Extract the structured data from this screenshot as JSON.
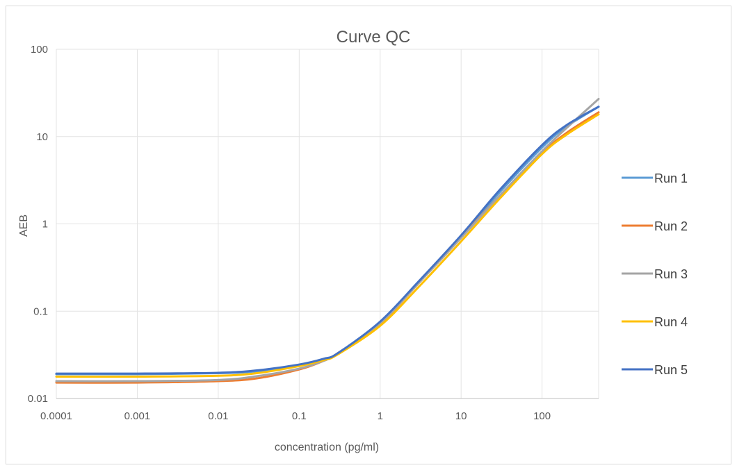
{
  "chart_data": {
    "type": "line",
    "title": "Curve QC",
    "xlabel": "concentration (pg/ml)",
    "ylabel": "AEB",
    "x_scale": "log",
    "y_scale": "log",
    "xlim": [
      0.0001,
      500
    ],
    "ylim": [
      0.01,
      100
    ],
    "x_ticks": [
      0.0001,
      0.001,
      0.01,
      0.1,
      1,
      10,
      100
    ],
    "x_tick_labels": [
      "0.0001",
      "0.001",
      "0.01",
      "0.1",
      "1",
      "10",
      "100"
    ],
    "y_ticks": [
      0.01,
      0.1,
      1,
      10,
      100
    ],
    "y_tick_labels": [
      "0.01",
      "0.1",
      "1",
      "10",
      "100"
    ],
    "grid": true,
    "legend_position": "right",
    "x": [
      0.0001,
      0.001,
      0.01,
      0.03,
      0.1,
      0.2,
      0.3,
      1,
      3,
      10,
      30,
      100,
      200,
      500
    ],
    "series": [
      {
        "name": "Run 1",
        "color": "#5b9bd5",
        "values": [
          0.019,
          0.019,
          0.0195,
          0.0205,
          0.024,
          0.028,
          0.033,
          0.075,
          0.21,
          0.72,
          2.3,
          7.5,
          13,
          22
        ]
      },
      {
        "name": "Run 2",
        "color": "#ed7d31",
        "values": [
          0.0152,
          0.0152,
          0.0158,
          0.017,
          0.0215,
          0.027,
          0.033,
          0.072,
          0.21,
          0.7,
          2.1,
          6.5,
          11,
          19
        ]
      },
      {
        "name": "Run 3",
        "color": "#a5a5a5",
        "values": [
          0.0158,
          0.0158,
          0.0163,
          0.018,
          0.022,
          0.027,
          0.033,
          0.073,
          0.21,
          0.69,
          2.1,
          6.8,
          12.5,
          27
        ]
      },
      {
        "name": "Run 4",
        "color": "#ffc000",
        "values": [
          0.0178,
          0.0178,
          0.0182,
          0.0195,
          0.0235,
          0.0275,
          0.032,
          0.068,
          0.19,
          0.63,
          1.95,
          6.3,
          10.5,
          18
        ]
      },
      {
        "name": "Run 5",
        "color": "#4472c4",
        "values": [
          0.0193,
          0.0193,
          0.0197,
          0.021,
          0.0245,
          0.0285,
          0.033,
          0.076,
          0.22,
          0.74,
          2.45,
          8.0,
          13.5,
          22
        ]
      }
    ]
  }
}
